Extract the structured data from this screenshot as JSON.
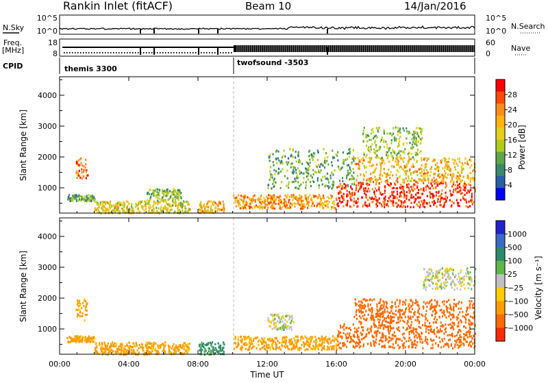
{
  "header": {
    "station": "Rankin Inlet (fitACF)",
    "beam": "Beam 10",
    "date": "14/Jan/2016"
  },
  "noise_panel": {
    "left_label": "N.Sky",
    "left_ticks": [
      "10^5",
      "10^0"
    ],
    "right_label": "N.Search",
    "right_ticks": [
      "10^5",
      "10^0"
    ]
  },
  "freq_panel": {
    "left_label_1": "Freq.",
    "left_label_2": "[MHz]",
    "left_ticks": [
      "18",
      "8"
    ],
    "right_label": "Nave",
    "right_ticks": [
      "60",
      "0"
    ]
  },
  "cpid_panel": {
    "label": "CPID",
    "programs": [
      "themis 3300",
      "twofsound -3503"
    ]
  },
  "x_axis": {
    "label": "Time UT",
    "ticks": [
      "00:00",
      "04:00",
      "08:00",
      "12:00",
      "16:00",
      "20:00",
      "00:00"
    ]
  },
  "chart_data": [
    {
      "type": "heatmap",
      "title": "Power",
      "ylabel": "Slant Range [km]",
      "ylim": [
        180,
        4600
      ],
      "yticks": [
        "4000",
        "3000",
        "2000",
        "1000"
      ],
      "colorbar": {
        "label": "Power [dB]",
        "ticks": [
          "28",
          "24",
          "20",
          "16",
          "12",
          "8",
          "4"
        ],
        "colors": [
          "#ff0000",
          "#ff4a00",
          "#ff8c1a",
          "#ffb30f",
          "#e5cf1c",
          "#b0cb1a",
          "#5fa648",
          "#3a8a6a",
          "#2a5ea8",
          "#0000ff"
        ]
      },
      "regions": [
        {
          "t": [
            0.4,
            2.0
          ],
          "r": [
            600,
            800
          ],
          "v": 12
        },
        {
          "t": [
            0.9,
            1.6
          ],
          "r": [
            1300,
            2000
          ],
          "v": 26
        },
        {
          "t": [
            2.0,
            7.5
          ],
          "r": [
            200,
            600
          ],
          "v": 18
        },
        {
          "t": [
            5.0,
            7.0
          ],
          "r": [
            600,
            1000
          ],
          "v": 14
        },
        {
          "t": [
            8.0,
            9.5
          ],
          "r": [
            200,
            600
          ],
          "v": 22
        },
        {
          "t": [
            10.0,
            16.0
          ],
          "r": [
            350,
            800
          ],
          "v": 24
        },
        {
          "t": [
            12.0,
            17.0
          ],
          "r": [
            1000,
            2300
          ],
          "v": 12
        },
        {
          "t": [
            16.0,
            24.0
          ],
          "r": [
            400,
            1200
          ],
          "v": 30
        },
        {
          "t": [
            17.0,
            24.0
          ],
          "r": [
            1200,
            2000
          ],
          "v": 22
        },
        {
          "t": [
            17.5,
            21.0
          ],
          "r": [
            2000,
            3000
          ],
          "v": 14
        }
      ]
    },
    {
      "type": "heatmap",
      "title": "Velocity",
      "ylabel": "Slant Range [km]",
      "ylim": [
        180,
        4600
      ],
      "yticks": [
        "4000",
        "3000",
        "2000",
        "1000"
      ],
      "colorbar": {
        "label": "Velocity [m s⁻¹]",
        "ticks": [
          "1000",
          "500",
          "100",
          "25",
          "−25",
          "−100",
          "−500",
          "−1000"
        ],
        "colors": [
          "#2222cc",
          "#3a6ac4",
          "#2d8a6a",
          "#5fb64a",
          "#c0c0c0",
          "#ffcc00",
          "#ff9c00",
          "#ff6a00",
          "#ff2a00"
        ]
      },
      "regions": [
        {
          "t": [
            0.4,
            2.0
          ],
          "r": [
            600,
            800
          ],
          "v": -100
        },
        {
          "t": [
            0.9,
            1.6
          ],
          "r": [
            1300,
            2000
          ],
          "v": -100
        },
        {
          "t": [
            2.0,
            7.5
          ],
          "r": [
            200,
            600
          ],
          "v": -100
        },
        {
          "t": [
            8.0,
            9.5
          ],
          "r": [
            200,
            600
          ],
          "v": 100
        },
        {
          "t": [
            10.0,
            16.0
          ],
          "r": [
            350,
            800
          ],
          "v": -100
        },
        {
          "t": [
            12.0,
            13.5
          ],
          "r": [
            1000,
            1500
          ],
          "v": 0
        },
        {
          "t": [
            16.0,
            24.0
          ],
          "r": [
            400,
            1200
          ],
          "v": -500
        },
        {
          "t": [
            17.0,
            24.0
          ],
          "r": [
            1200,
            2000
          ],
          "v": -500
        },
        {
          "t": [
            21.0,
            24.0
          ],
          "r": [
            2300,
            3000
          ],
          "v": 0
        }
      ]
    }
  ]
}
